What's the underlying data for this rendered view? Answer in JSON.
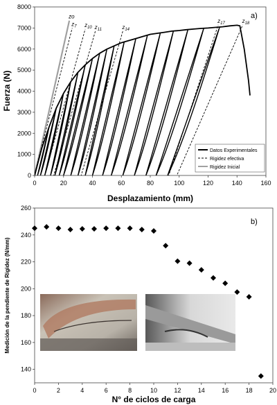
{
  "chart_data": [
    {
      "type": "line",
      "panel_label": "a)",
      "xlabel": "Desplazamiento  (mm)",
      "ylabel": "Fuerza  (N)",
      "xlim": [
        0,
        160
      ],
      "ylim": [
        0,
        8000
      ],
      "xticks": [
        "0",
        "20",
        "40",
        "60",
        "80",
        "100",
        "120",
        "140",
        "160"
      ],
      "yticks": [
        "0",
        "1000",
        "2000",
        "3000",
        "4000",
        "5000",
        "6000",
        "7000",
        "8000"
      ],
      "grid": false,
      "legend_position": "bottom-right",
      "legend": [
        "Datos Experimentales",
        "Rigidez efectiva",
        "Rigidez Inicial"
      ],
      "series": [
        {
          "name": "Datos Experimentales",
          "style": "solid-black",
          "envelope": [
            [
              0,
              0
            ],
            [
              5,
              1300
            ],
            [
              10,
              2300
            ],
            [
              15,
              3200
            ],
            [
              20,
              3900
            ],
            [
              25,
              4450
            ],
            [
              30,
              4900
            ],
            [
              35,
              5250
            ],
            [
              40,
              5550
            ],
            [
              45,
              5800
            ],
            [
              50,
              6000
            ],
            [
              55,
              6150
            ],
            [
              60,
              6300
            ],
            [
              65,
              6400
            ],
            [
              70,
              6500
            ],
            [
              75,
              6600
            ],
            [
              80,
              6700
            ],
            [
              85,
              6750
            ],
            [
              90,
              6800
            ],
            [
              95,
              6850
            ],
            [
              100,
              6880
            ],
            [
              105,
              6920
            ],
            [
              110,
              6950
            ],
            [
              115,
              6980
            ],
            [
              120,
              7000
            ],
            [
              125,
              7030
            ],
            [
              130,
              7060
            ],
            [
              135,
              7100
            ],
            [
              140,
              7130
            ],
            [
              142,
              7100
            ],
            [
              145,
              6000
            ],
            [
              148,
              4500
            ],
            [
              149,
              3800
            ]
          ],
          "unload_cycles": [
            {
              "peak": [
                10,
                2300
              ],
              "residual_x": 2
            },
            {
              "peak": [
                15,
                3200
              ],
              "residual_x": 4
            },
            {
              "peak": [
                20,
                3900
              ],
              "residual_x": 7
            },
            {
              "peak": [
                25,
                4450
              ],
              "residual_x": 11
            },
            {
              "peak": [
                30,
                4900
              ],
              "residual_x": 14
            },
            {
              "peak": [
                35,
                5250
              ],
              "residual_x": 17
            },
            {
              "peak": [
                40,
                5550
              ],
              "residual_x": 20
            },
            {
              "peak": [
                45,
                5800
              ],
              "residual_x": 25
            },
            {
              "peak": [
                50,
                6000
              ],
              "residual_x": 30
            },
            {
              "peak": [
                55,
                6150
              ],
              "residual_x": 35
            },
            {
              "peak": [
                62,
                6350
              ],
              "residual_x": 40
            },
            {
              "peak": [
                70,
                6500
              ],
              "residual_x": 47
            },
            {
              "peak": [
                78,
                6650
              ],
              "residual_x": 53
            },
            {
              "peak": [
                87,
                6780
              ],
              "residual_x": 61
            },
            {
              "peak": [
                96,
                6860
              ],
              "residual_x": 69
            },
            {
              "peak": [
                106,
                6920
              ],
              "residual_x": 77
            },
            {
              "peak": [
                117,
                6990
              ],
              "residual_x": 84
            },
            {
              "peak": [
                128,
                7050
              ],
              "residual_x": 92
            }
          ]
        },
        {
          "name": "Rigidez efectiva",
          "style": "dashed-black",
          "lines": [
            {
              "label": "z",
              "sub": "7",
              "from": [
                -4,
                -1000
              ],
              "to": [
                26,
                7000
              ]
            },
            {
              "label": "z",
              "sub": "10",
              "from": [
                3,
                -1000
              ],
              "to": [
                35,
                6950
              ]
            },
            {
              "label": "z",
              "sub": "11",
              "from": [
                9,
                -1000
              ],
              "to": [
                42,
                6850
              ]
            },
            {
              "label": "z",
              "sub": "14",
              "from": [
                28,
                -1000
              ],
              "to": [
                61,
                6850
              ]
            },
            {
              "label": "z",
              "sub": "17",
              "from": [
                88,
                -1000
              ],
              "to": [
                127,
                7150
              ]
            },
            {
              "label": "z",
              "sub": "18",
              "from": [
                92,
                -1000
              ],
              "to": [
                144,
                7150
              ]
            }
          ]
        },
        {
          "name": "Rigidez Inicial",
          "style": "solid-gray",
          "lines": [
            {
              "label": "zo",
              "sub": "",
              "from": [
                0,
                0
              ],
              "to": [
                24,
                7350
              ]
            }
          ]
        }
      ]
    },
    {
      "type": "scatter",
      "panel_label": "b)",
      "xlabel": "N° de ciclos de carga",
      "ylabel": "Medición de la pendiente de Rigidez  (N/mm)",
      "xlim": [
        0,
        20
      ],
      "ylim": [
        130,
        260
      ],
      "xticks": [
        "0",
        "2",
        "4",
        "6",
        "8",
        "10",
        "12",
        "14",
        "16",
        "18",
        "20"
      ],
      "yticks": [
        "140",
        "160",
        "180",
        "200",
        "220",
        "240",
        "260"
      ],
      "grid": false,
      "marker": "diamond",
      "x": [
        0,
        1,
        2,
        3,
        4,
        5,
        6,
        7,
        8,
        9,
        10,
        11,
        12,
        13,
        14,
        15,
        16,
        17,
        18,
        19
      ],
      "y": [
        245,
        246,
        245,
        244,
        244.5,
        244.5,
        245,
        245,
        245,
        244,
        243,
        232,
        220.5,
        219,
        214,
        208,
        204,
        197.5,
        194,
        135
      ],
      "inset_photos": 2
    }
  ]
}
